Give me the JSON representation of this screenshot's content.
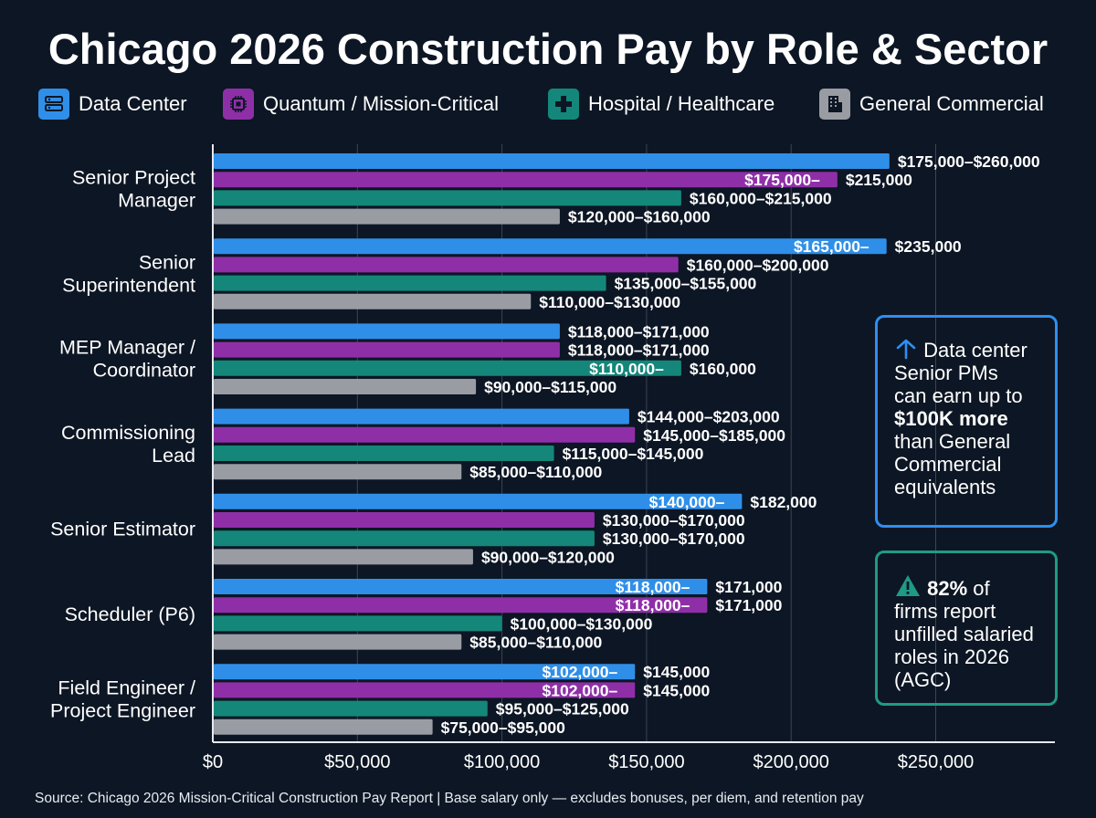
{
  "title": "Chicago 2026 Construction Pay by Role & Sector",
  "legend": [
    {
      "label": "Data Center",
      "color": "#2f8fe8",
      "icon": "server-icon"
    },
    {
      "label": "Quantum / Mission-Critical",
      "color": "#8f2fa8",
      "icon": "chip-icon"
    },
    {
      "label": "Hospital / Healthcare",
      "color": "#14877a",
      "icon": "medical-cross-icon"
    },
    {
      "label": "General Commercial",
      "color": "#9a9ca3",
      "icon": "office-building-icon"
    }
  ],
  "callouts": {
    "data_center": {
      "icon": "arrow-up-icon",
      "line1": "Data center",
      "line2": "Senior PMs",
      "line3": "can earn up to",
      "highlight": "$100K more",
      "line4": "than General",
      "line5": "Commercial",
      "line6": "equivalents"
    },
    "unfilled": {
      "icon": "warning-icon",
      "highlight": "82%",
      "line1_rest": " of",
      "line2": "firms report",
      "line3": "unfilled salaried",
      "line4": "roles in 2026",
      "line5": "(AGC)"
    }
  },
  "source": "Source: Chicago 2026 Mission-Critical Construction Pay Report | Base salary only — excludes bonuses, per diem, and retention pay",
  "chart_data": {
    "type": "bar",
    "orientation": "horizontal",
    "xlim": [
      0,
      290000
    ],
    "x_ticks": [
      0,
      50000,
      100000,
      150000,
      200000,
      250000
    ],
    "x_tick_labels": [
      "$0",
      "$50,000",
      "$100,000",
      "$150,000",
      "$200,000",
      "$250,000"
    ],
    "grid": true,
    "categories": [
      [
        "Senior Project",
        "Manager"
      ],
      [
        "Senior",
        "Superintendent"
      ],
      [
        "MEP Manager /",
        "Coordinator"
      ],
      [
        "Commissioning",
        "Lead"
      ],
      [
        "Senior Estimator"
      ],
      [
        "Scheduler (P6)"
      ],
      [
        "Field Engineer /",
        "Project Engineer"
      ]
    ],
    "series": [
      {
        "name": "Data Center",
        "color": "#2f8fe8",
        "ranges": [
          [
            175000,
            260000
          ],
          [
            165000,
            235000
          ],
          [
            118000,
            171000
          ],
          [
            144000,
            203000
          ],
          [
            140000,
            182000
          ],
          [
            118000,
            171000
          ],
          [
            102000,
            145000
          ]
        ],
        "values": [
          234000,
          233000,
          120000,
          144000,
          183000,
          171000,
          146000
        ],
        "labels": [
          "$175,000–$260,000",
          "$165,000–|$235,000",
          "$118,000–$171,000",
          "$144,000–$203,000",
          "$140,000–|$182,000",
          "$118,000–|$171,000",
          "$102,000–|$145,000"
        ]
      },
      {
        "name": "Quantum / Mission-Critical",
        "color": "#8f2fa8",
        "ranges": [
          [
            175000,
            215000
          ],
          [
            160000,
            200000
          ],
          [
            118000,
            171000
          ],
          [
            145000,
            185000
          ],
          [
            130000,
            170000
          ],
          [
            118000,
            171000
          ],
          [
            102000,
            145000
          ]
        ],
        "values": [
          216000,
          161000,
          120000,
          146000,
          132000,
          171000,
          146000
        ],
        "labels": [
          "$175,000–|$215,000",
          "$160,000–$200,000",
          "$118,000–$171,000",
          "$145,000–$185,000",
          "$130,000–$170,000",
          "$118,000–|$171,000",
          "$102,000–|$145,000"
        ]
      },
      {
        "name": "Hospital / Healthcare",
        "color": "#14877a",
        "ranges": [
          [
            160000,
            215000
          ],
          [
            135000,
            155000
          ],
          [
            110000,
            160000
          ],
          [
            115000,
            145000
          ],
          [
            130000,
            170000
          ],
          [
            100000,
            130000
          ],
          [
            95000,
            125000
          ]
        ],
        "values": [
          162000,
          136000,
          162000,
          118000,
          132000,
          100000,
          95000
        ],
        "labels": [
          "$160,000–$215,000",
          "$135,000–$155,000",
          "$110,000–|$160,000",
          "$115,000–$145,000",
          "$130,000–$170,000",
          "$100,000–$130,000",
          "$95,000–$125,000"
        ]
      },
      {
        "name": "General Commercial",
        "color": "#9a9ca3",
        "ranges": [
          [
            120000,
            160000
          ],
          [
            110000,
            130000
          ],
          [
            90000,
            115000
          ],
          [
            85000,
            110000
          ],
          [
            90000,
            120000
          ],
          [
            85000,
            110000
          ],
          [
            75000,
            95000
          ]
        ],
        "values": [
          120000,
          110000,
          91000,
          86000,
          90000,
          86000,
          76000
        ],
        "labels": [
          "$120,000–$160,000",
          "$110,000–$130,000",
          "$90,000–$115,000",
          "$85,000–$110,000",
          "$90,000–$120,000",
          "$85,000–$110,000",
          "$75,000–$95,000"
        ]
      }
    ]
  }
}
